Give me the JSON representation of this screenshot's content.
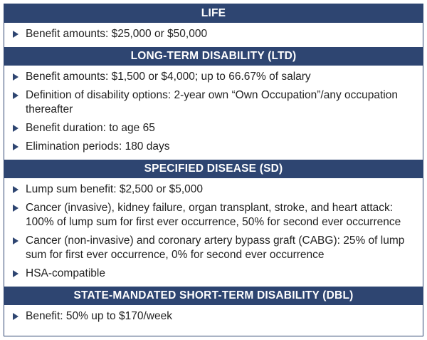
{
  "sections": [
    {
      "title": "LIFE",
      "items": [
        "Benefit amounts: $25,000 or $50,000"
      ]
    },
    {
      "title": "LONG-TERM DISABILITY (LTD)",
      "items": [
        "Benefit amounts: $1,500 or $4,000; up to 66.67% of salary",
        "Definition of disability options: 2-year own “Own Occupation”/any occupation thereafter",
        "Benefit duration: to age 65",
        "Elimination periods: 180 days"
      ]
    },
    {
      "title": "SPECIFIED DISEASE (SD)",
      "items": [
        "Lump sum benefit: $2,500 or $5,000",
        "Cancer (invasive), kidney failure, organ transplant, stroke, and heart attack: 100% of lump sum for first ever occurrence, 50% for second ever occurrence",
        "Cancer (non-invasive) and coronary artery bypass graft (CABG): 25% of lump sum for first ever occurrence, 0% for second ever occurrence",
        "HSA-compatible"
      ]
    },
    {
      "title": "STATE-MANDATED SHORT-TERM DISABILITY (DBL)",
      "items": [
        "Benefit: 50% up to $170/week"
      ]
    }
  ],
  "colors": {
    "header_bg": "#2e4571",
    "header_text": "#ffffff",
    "body_text": "#222222",
    "bullet": "#2e4571"
  },
  "icons": {
    "bullet": "triangle-right-bullet-icon"
  }
}
